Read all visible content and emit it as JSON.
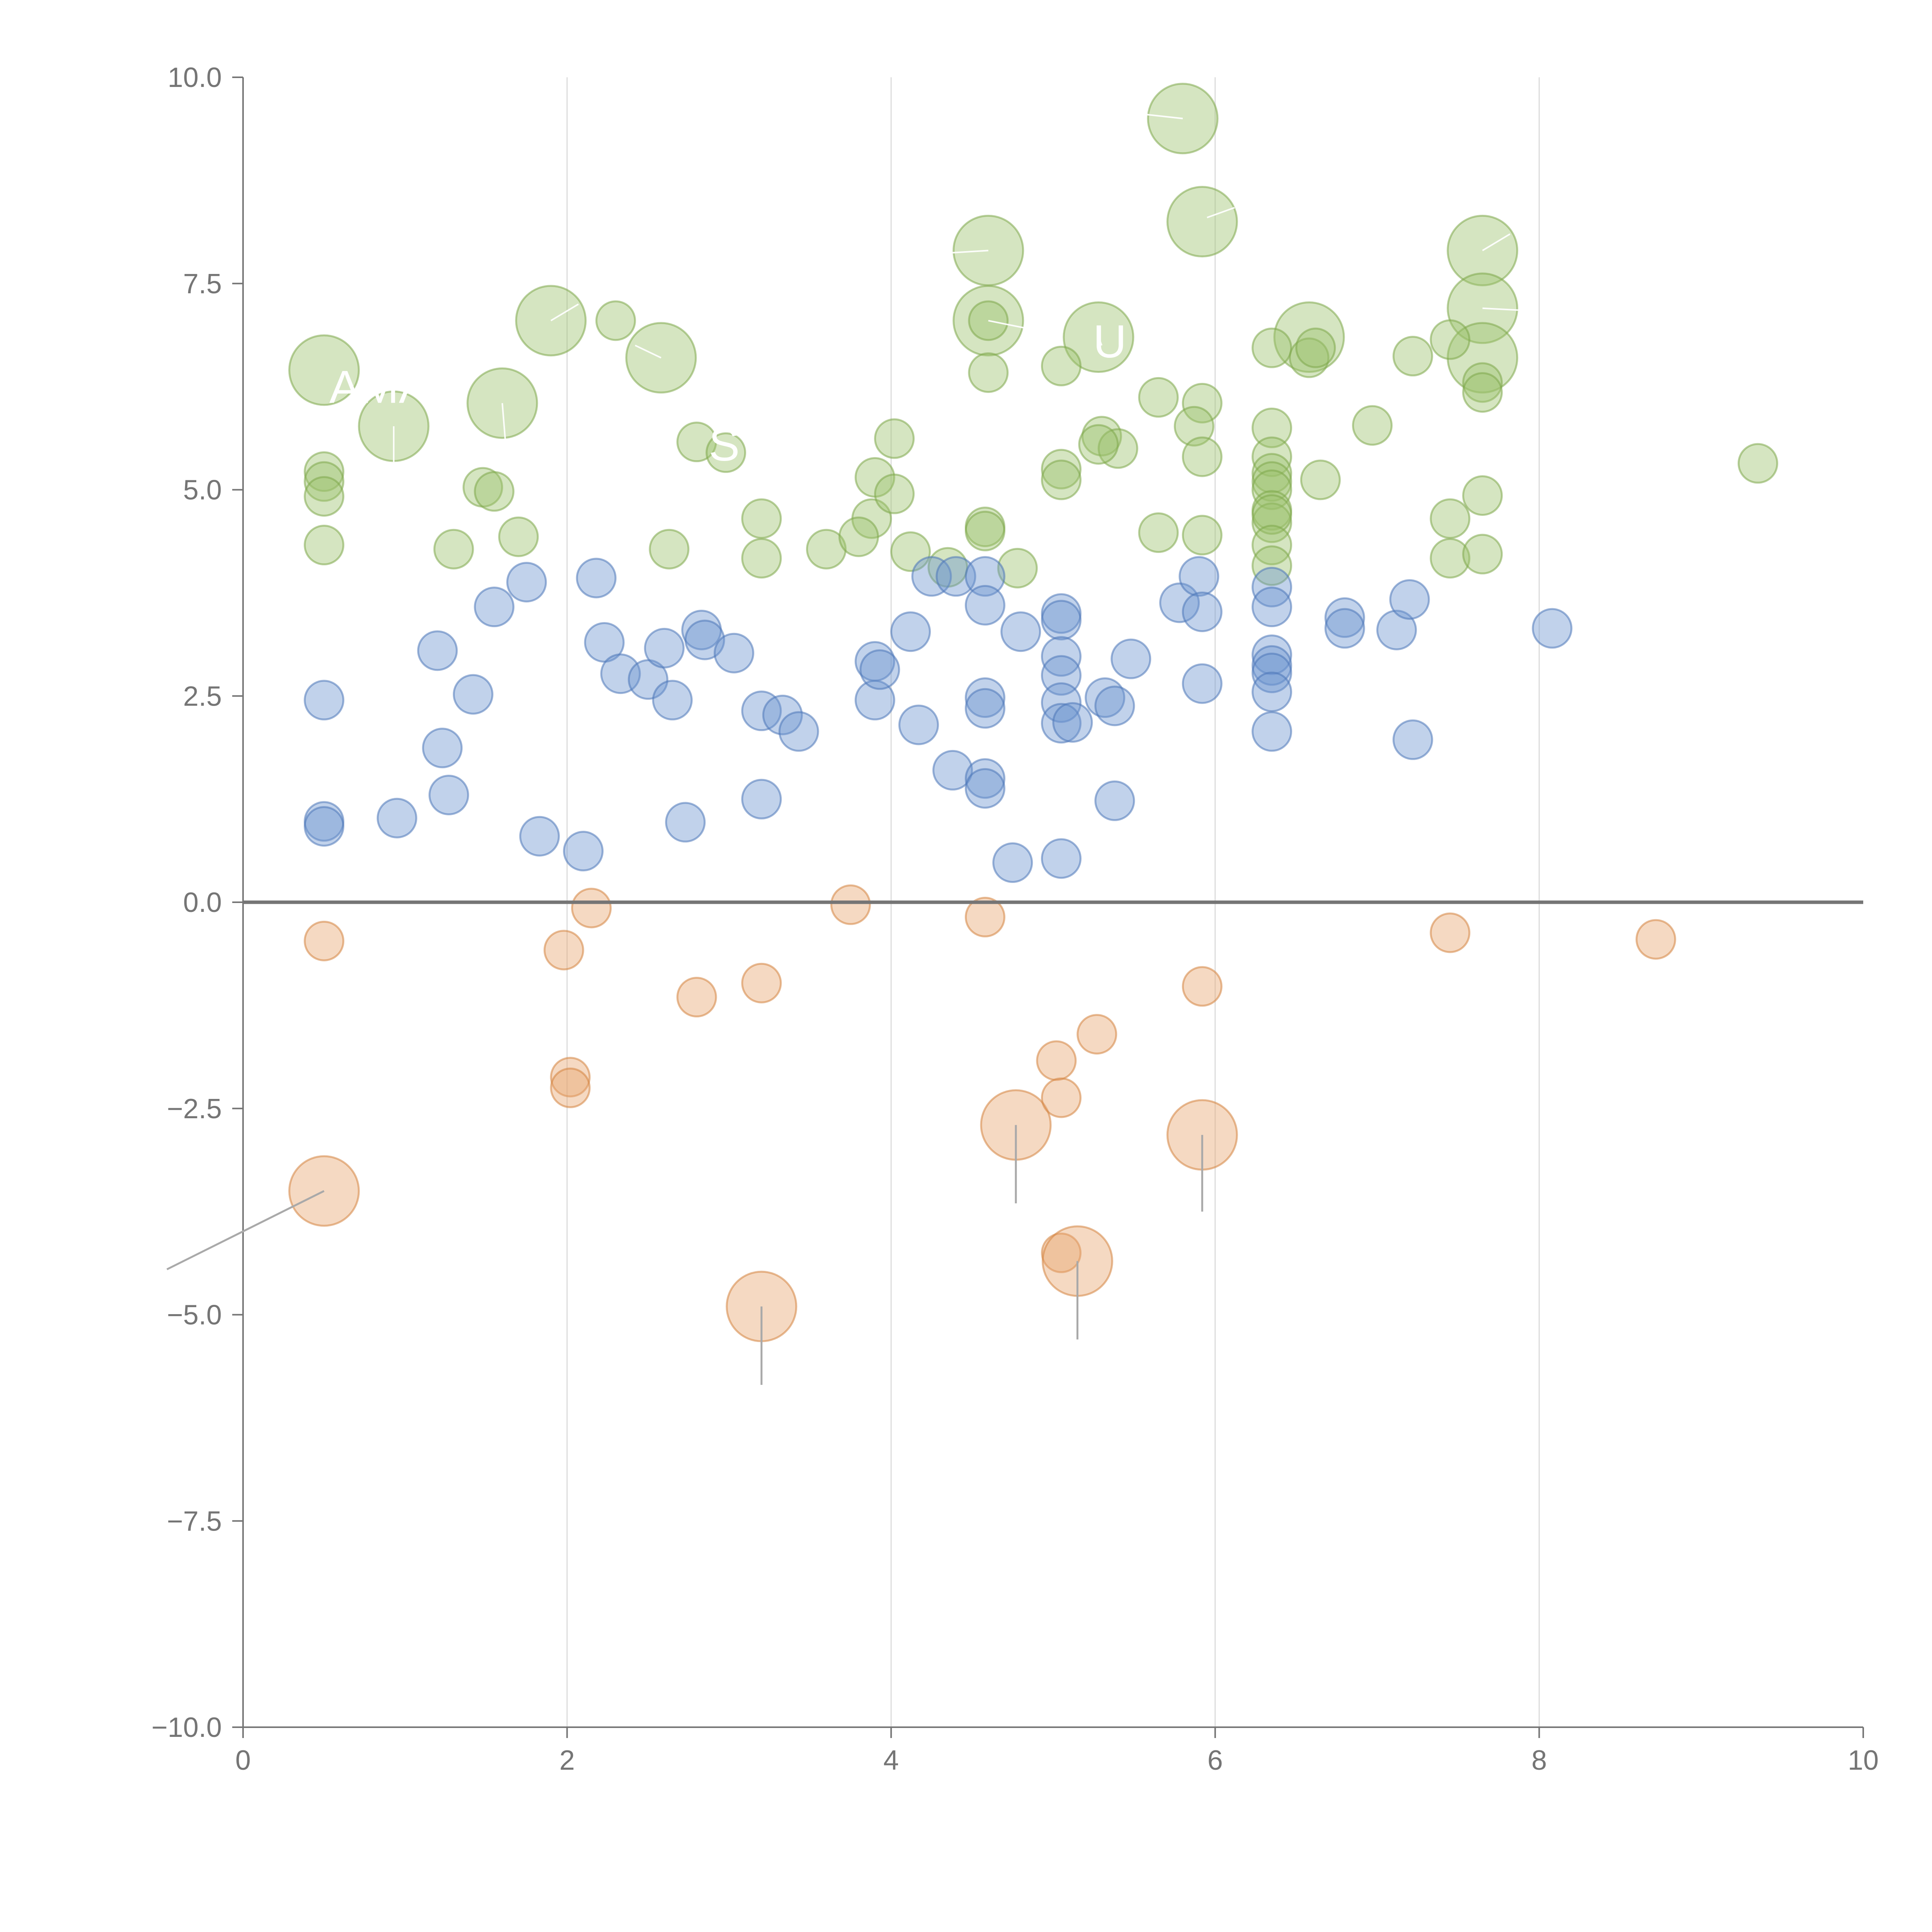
{
  "chart_data": {
    "type": "scatter",
    "subtype": "bubble",
    "title": "",
    "xlabel": "",
    "ylabel": "",
    "xlim": [
      0,
      10
    ],
    "ylim": [
      -10,
      10
    ],
    "x_ticks": [
      0,
      2,
      4,
      6,
      8,
      10
    ],
    "x_tick_labels": [
      "0",
      "2",
      "4",
      "6",
      "8",
      "10"
    ],
    "y_ticks": [
      10,
      7.5,
      5,
      2.5,
      0,
      -2.5,
      -5,
      -7.5,
      -10
    ],
    "y_tick_labels": [
      "10.0",
      "7.5",
      "5.0",
      "2.5",
      "0.0",
      "−2.5",
      "−5.0",
      "−7.5",
      "−10.0"
    ],
    "grid": "vertical at x ticks",
    "reference_line_y": 0,
    "colors": {
      "green": "#9cc26b",
      "green_edge": "#7ea84a",
      "blue": "#6c93cf",
      "blue_edge": "#4c76b8",
      "orange": "#e8a56e",
      "orange_edge": "#d4843f",
      "axis": "#757575",
      "grid": "#dcdcdc"
    },
    "series": [
      {
        "name": "green",
        "color": "green",
        "points": [
          [
            5.8,
            9.5,
            2
          ],
          [
            5.92,
            8.25,
            2
          ],
          [
            4.6,
            7.9,
            2
          ],
          [
            7.65,
            7.9,
            2
          ],
          [
            1.9,
            7.05,
            2
          ],
          [
            4.6,
            7.05,
            2
          ],
          [
            7.65,
            7.2,
            2
          ],
          [
            5.28,
            6.85,
            2
          ],
          [
            6.58,
            6.85,
            2
          ],
          [
            0.5,
            6.45,
            2
          ],
          [
            2.58,
            6.6,
            2
          ],
          [
            7.65,
            6.6,
            2
          ],
          [
            1.6,
            6.05,
            2
          ],
          [
            0.93,
            5.77,
            2
          ],
          [
            2.3,
            7.05,
            1
          ],
          [
            4.6,
            7.05,
            1
          ],
          [
            4.6,
            6.42,
            1
          ],
          [
            5.05,
            6.5,
            1
          ],
          [
            5.65,
            6.12,
            1
          ],
          [
            5.92,
            6.05,
            1
          ],
          [
            6.35,
            6.72,
            1
          ],
          [
            6.58,
            6.6,
            1
          ],
          [
            6.62,
            6.72,
            1
          ],
          [
            7.22,
            6.62,
            1
          ],
          [
            7.45,
            6.82,
            1
          ],
          [
            7.65,
            6.3,
            1
          ],
          [
            7.65,
            6.18,
            1
          ],
          [
            6.97,
            5.78,
            1
          ],
          [
            5.87,
            5.77,
            1
          ],
          [
            6.35,
            5.75,
            1
          ],
          [
            2.8,
            5.58,
            1
          ],
          [
            2.98,
            5.45,
            1
          ],
          [
            3.9,
            5.15,
            1
          ],
          [
            4.02,
            5.62,
            1
          ],
          [
            3.88,
            4.65,
            1
          ],
          [
            4.02,
            4.95,
            1
          ],
          [
            5.05,
            5.25,
            1
          ],
          [
            5.05,
            5.12,
            1
          ],
          [
            5.3,
            5.65,
            1
          ],
          [
            5.4,
            5.5,
            1
          ],
          [
            5.28,
            5.55,
            1
          ],
          [
            5.92,
            5.4,
            1
          ],
          [
            6.35,
            5.4,
            1
          ],
          [
            6.35,
            5.2,
            1
          ],
          [
            6.35,
            5.1,
            1
          ],
          [
            6.35,
            5.0,
            1
          ],
          [
            6.65,
            5.12,
            1
          ],
          [
            6.35,
            4.75,
            1
          ],
          [
            6.35,
            4.6,
            1
          ],
          [
            6.35,
            4.7,
            1
          ],
          [
            6.35,
            4.33,
            1
          ],
          [
            6.35,
            4.08,
            1
          ],
          [
            0.5,
            5.22,
            1
          ],
          [
            0.5,
            5.1,
            1
          ],
          [
            0.5,
            4.92,
            1
          ],
          [
            0.5,
            4.33,
            1
          ],
          [
            1.48,
            5.03,
            1
          ],
          [
            1.55,
            4.98,
            1
          ],
          [
            1.3,
            4.28,
            1
          ],
          [
            1.7,
            4.43,
            1
          ],
          [
            2.63,
            4.28,
            1
          ],
          [
            3.2,
            4.65,
            1
          ],
          [
            3.2,
            4.17,
            1
          ],
          [
            3.6,
            4.28,
            1
          ],
          [
            3.8,
            4.43,
            1
          ],
          [
            4.12,
            4.25,
            1
          ],
          [
            4.35,
            4.06,
            1
          ],
          [
            4.58,
            4.55,
            1
          ],
          [
            4.58,
            4.5,
            1
          ],
          [
            4.78,
            4.05,
            1
          ],
          [
            5.65,
            4.48,
            1
          ],
          [
            5.92,
            4.45,
            1
          ],
          [
            7.45,
            4.65,
            1
          ],
          [
            7.45,
            4.17,
            1
          ],
          [
            7.65,
            4.93,
            1
          ],
          [
            7.65,
            4.22,
            1
          ],
          [
            9.35,
            5.32,
            1
          ]
        ]
      },
      {
        "name": "blue",
        "color": "blue",
        "points": [
          [
            0.5,
            2.45,
            1
          ],
          [
            0.5,
            0.98,
            1
          ],
          [
            0.5,
            0.92,
            1
          ],
          [
            0.95,
            1.02,
            1
          ],
          [
            1.2,
            3.05,
            1
          ],
          [
            1.23,
            1.87,
            1
          ],
          [
            1.27,
            1.3,
            1
          ],
          [
            1.42,
            2.52,
            1
          ],
          [
            1.55,
            3.58,
            1
          ],
          [
            1.75,
            3.88,
            1
          ],
          [
            1.83,
            0.8,
            1
          ],
          [
            2.1,
            0.62,
            1
          ],
          [
            2.18,
            3.93,
            1
          ],
          [
            2.23,
            3.15,
            1
          ],
          [
            2.33,
            2.77,
            1
          ],
          [
            2.5,
            2.7,
            1
          ],
          [
            2.6,
            3.08,
            1
          ],
          [
            2.65,
            2.45,
            1
          ],
          [
            2.73,
            0.97,
            1
          ],
          [
            2.83,
            3.3,
            1
          ],
          [
            2.85,
            3.18,
            1
          ],
          [
            3.03,
            3.02,
            1
          ],
          [
            3.2,
            2.32,
            1
          ],
          [
            3.2,
            1.25,
            1
          ],
          [
            3.33,
            2.27,
            1
          ],
          [
            3.43,
            2.07,
            1
          ],
          [
            3.9,
            2.92,
            1
          ],
          [
            3.9,
            2.45,
            1
          ],
          [
            3.93,
            2.82,
            1
          ],
          [
            4.12,
            3.28,
            1
          ],
          [
            4.17,
            2.15,
            1
          ],
          [
            4.25,
            3.95,
            1
          ],
          [
            4.38,
            1.6,
            1
          ],
          [
            4.4,
            3.95,
            1
          ],
          [
            4.58,
            3.95,
            1
          ],
          [
            4.58,
            3.6,
            1
          ],
          [
            4.58,
            2.48,
            1
          ],
          [
            4.58,
            2.35,
            1
          ],
          [
            4.58,
            1.5,
            1
          ],
          [
            4.58,
            1.38,
            1
          ],
          [
            4.75,
            0.48,
            1
          ],
          [
            4.8,
            3.28,
            1
          ],
          [
            5.05,
            3.5,
            1
          ],
          [
            5.05,
            3.42,
            1
          ],
          [
            5.05,
            2.98,
            1
          ],
          [
            5.05,
            2.75,
            1
          ],
          [
            5.05,
            2.42,
            1
          ],
          [
            5.05,
            2.17,
            1
          ],
          [
            5.05,
            0.53,
            1
          ],
          [
            5.12,
            2.18,
            1
          ],
          [
            5.32,
            2.48,
            1
          ],
          [
            5.38,
            2.38,
            1
          ],
          [
            5.38,
            1.23,
            1
          ],
          [
            5.48,
            2.95,
            1
          ],
          [
            5.78,
            3.63,
            1
          ],
          [
            5.9,
            3.95,
            1
          ],
          [
            5.92,
            3.52,
            1
          ],
          [
            5.92,
            2.65,
            1
          ],
          [
            6.35,
            3.82,
            1
          ],
          [
            6.35,
            3.58,
            1
          ],
          [
            6.35,
            3.0,
            1
          ],
          [
            6.35,
            2.87,
            1
          ],
          [
            6.35,
            2.78,
            1
          ],
          [
            6.35,
            2.55,
            1
          ],
          [
            6.35,
            2.07,
            1
          ],
          [
            6.8,
            3.45,
            1
          ],
          [
            6.8,
            3.32,
            1
          ],
          [
            7.12,
            3.3,
            1
          ],
          [
            7.2,
            3.67,
            1
          ],
          [
            7.22,
            1.97,
            1
          ],
          [
            8.08,
            3.32,
            1
          ]
        ]
      },
      {
        "name": "orange",
        "color": "orange",
        "points": [
          [
            0.5,
            -3.5,
            2
          ],
          [
            0.5,
            -0.47,
            1
          ],
          [
            1.98,
            -0.58,
            1
          ],
          [
            2.02,
            -2.12,
            1
          ],
          [
            2.02,
            -2.25,
            1
          ],
          [
            2.15,
            -0.07,
            1
          ],
          [
            2.8,
            -1.15,
            1
          ],
          [
            3.2,
            -0.98,
            1
          ],
          [
            3.2,
            -4.9,
            2
          ],
          [
            3.75,
            -0.03,
            1
          ],
          [
            4.58,
            -0.18,
            1
          ],
          [
            4.77,
            -2.7,
            2
          ],
          [
            5.02,
            -1.92,
            1
          ],
          [
            5.05,
            -2.37,
            1
          ],
          [
            5.05,
            -4.25,
            1
          ],
          [
            5.15,
            -4.35,
            2
          ],
          [
            5.27,
            -1.6,
            1
          ],
          [
            5.92,
            -1.02,
            1
          ],
          [
            5.92,
            -2.82,
            2
          ],
          [
            7.45,
            -0.37,
            1
          ],
          [
            8.72,
            -0.45,
            1
          ]
        ]
      }
    ],
    "size_levels": {
      "1": "small",
      "2": "large"
    },
    "annotations": [
      {
        "text": "AMAZ",
        "x": 0.93,
        "y": 6.25
      },
      {
        "text": "S",
        "x": 2.97,
        "y": 5.55
      },
      {
        "text": "U",
        "x": 5.35,
        "y": 6.8
      }
    ],
    "leader_lines": [
      [
        5.8,
        9.5,
        5.57,
        9.55
      ],
      [
        5.95,
        8.3,
        6.12,
        8.42
      ],
      [
        4.6,
        7.9,
        4.35,
        7.87
      ],
      [
        7.65,
        7.9,
        7.82,
        8.1
      ],
      [
        1.9,
        7.05,
        2.07,
        7.25
      ],
      [
        4.6,
        7.05,
        4.93,
        6.92
      ],
      [
        7.65,
        7.2,
        7.95,
        7.17
      ],
      [
        2.58,
        6.6,
        2.42,
        6.75
      ],
      [
        1.6,
        6.05,
        1.62,
        5.57
      ],
      [
        0.93,
        5.77,
        0.93,
        5.32
      ],
      [
        5.28,
        6.85,
        5.3,
        6.75
      ],
      [
        0.5,
        -3.5,
        -0.47,
        -4.45
      ],
      [
        4.77,
        -2.7,
        4.77,
        -3.65
      ],
      [
        3.2,
        -4.9,
        3.2,
        -5.85
      ],
      [
        5.15,
        -4.35,
        5.15,
        -5.3
      ],
      [
        5.92,
        -2.82,
        5.92,
        -3.75
      ]
    ]
  }
}
